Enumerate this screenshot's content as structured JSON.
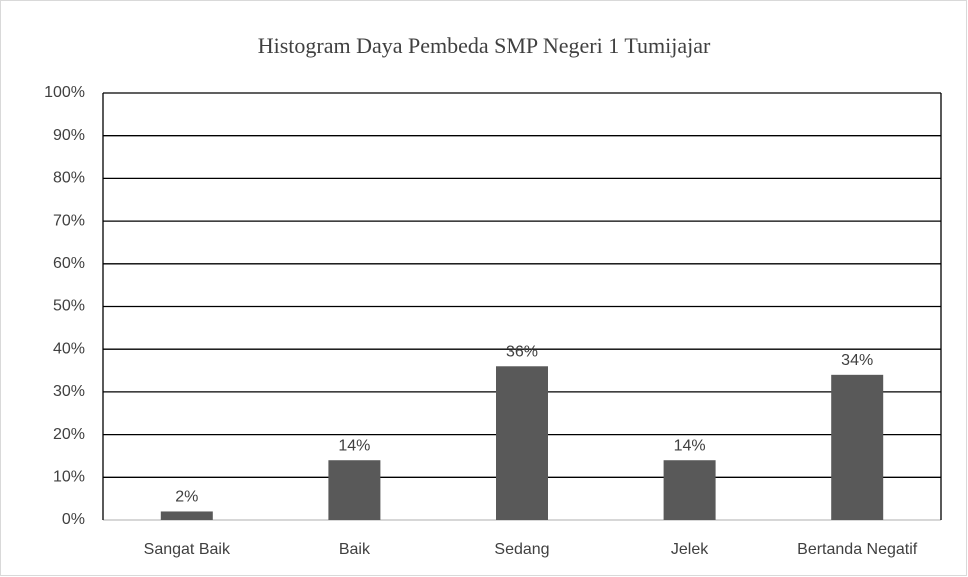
{
  "chart_data": {
    "type": "bar",
    "title": "Histogram Daya Pembeda SMP Negeri 1 Tumijajar",
    "categories": [
      "Sangat Baik",
      "Baik",
      "Sedang",
      "Jelek",
      "Bertanda Negatif"
    ],
    "values": [
      2,
      14,
      36,
      14,
      34
    ],
    "value_labels": [
      "2%",
      "14%",
      "36%",
      "14%",
      "34%"
    ],
    "color": "#595959",
    "ylim": [
      0,
      100
    ],
    "yticks": [
      {
        "value": 0,
        "label": "0%"
      },
      {
        "value": 10,
        "label": "10%"
      },
      {
        "value": 20,
        "label": "20%"
      },
      {
        "value": 30,
        "label": "30%"
      },
      {
        "value": 40,
        "label": "40%"
      },
      {
        "value": 50,
        "label": "50%"
      },
      {
        "value": 60,
        "label": "60%"
      },
      {
        "value": 70,
        "label": "70%"
      },
      {
        "value": 80,
        "label": "80%"
      },
      {
        "value": 90,
        "label": "90%"
      },
      {
        "value": 100,
        "label": "100%"
      }
    ],
    "grid": true
  }
}
